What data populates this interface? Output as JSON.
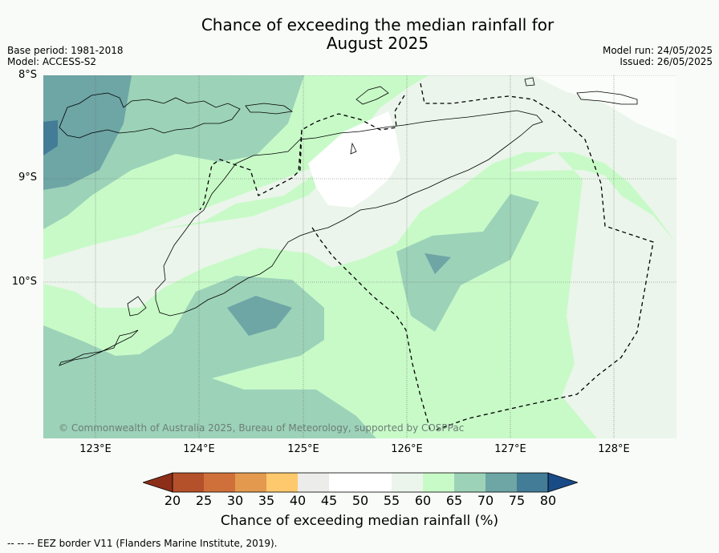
{
  "title": [
    "Chance of exceeding the median rainfall for",
    "August 2025"
  ],
  "meta_left": [
    "Base period: 1981-2018",
    "Model: ACCESS-S2"
  ],
  "meta_right": [
    "Model run: 24/05/2025",
    "Issued: 26/05/2025"
  ],
  "lat_labels": [
    "8°S",
    "9°S",
    "10°S"
  ],
  "lon_labels": [
    "123°E",
    "124°E",
    "125°E",
    "126°E",
    "127°E",
    "128°E"
  ],
  "copyright": "© Commonwealth of Australia 2025, Bureau of Meteorology, supported by COSPPac",
  "colorbar": {
    "ticks": [
      "20",
      "25",
      "30",
      "35",
      "40",
      "45",
      "50",
      "55",
      "60",
      "65",
      "70",
      "75",
      "80"
    ],
    "colors": [
      "#8c2e18",
      "#b4502a",
      "#cf703a",
      "#e39a4e",
      "#fec96c",
      "#ececea",
      "#ffffff",
      "#ffffff",
      "#ebf5eb",
      "#c8fac8",
      "#9cd2b8",
      "#6ea5a5",
      "#437c96",
      "#194b87"
    ],
    "label": "Chance of exceeding median rainfall (%)"
  },
  "footer": "--  --  -- EEZ border V11 (Flanders Marine Institute, 2019)."
}
